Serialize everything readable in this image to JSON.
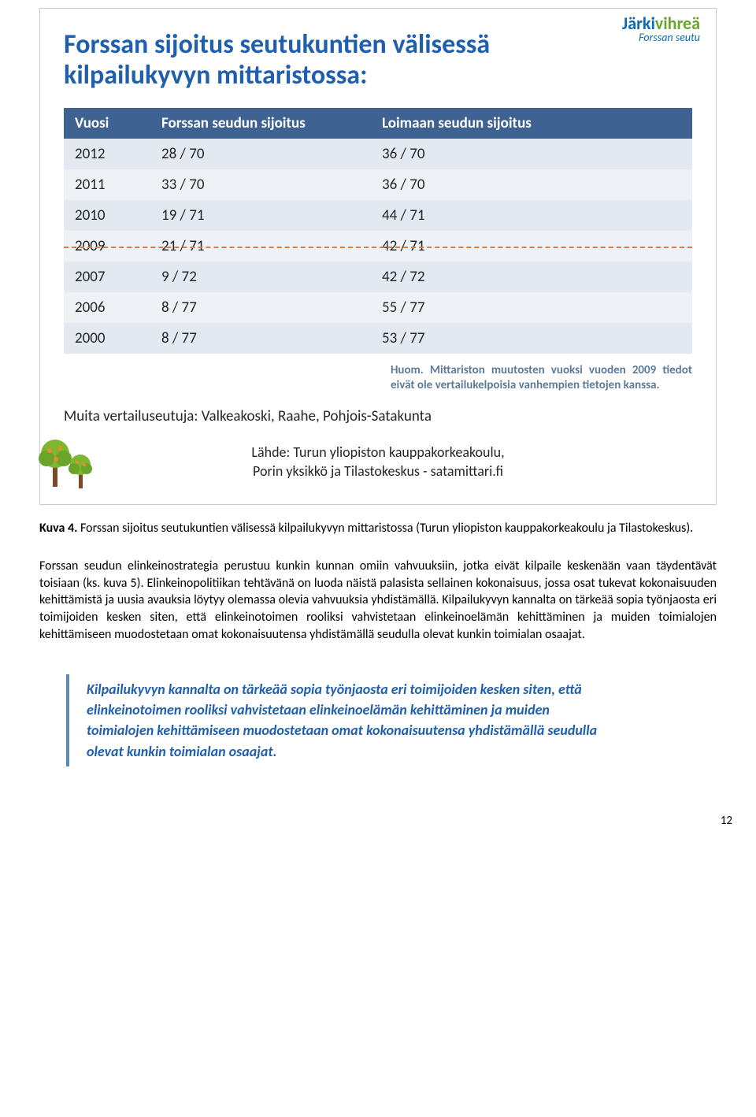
{
  "logo": {
    "part1": "Järki",
    "part2": "vihreä",
    "sub": "Forssan seutu"
  },
  "slide": {
    "title": "Forssan sijoitus seutukuntien välisessä kilpailukyvyn mittaristossa:",
    "table": {
      "columns": [
        "Vuosi",
        "Forssan seudun sijoitus",
        "Loimaan seudun sijoitus"
      ],
      "rows": [
        [
          "2012",
          "28 / 70",
          "36 / 70"
        ],
        [
          "2011",
          "33 / 70",
          "36 / 70"
        ],
        [
          "2010",
          "19 / 71",
          "44 / 71"
        ],
        [
          "2009",
          "21 / 71",
          "42 / 71"
        ],
        [
          "2007",
          "9 / 72",
          "42 / 72"
        ],
        [
          "2006",
          "8 / 77",
          "55 / 77"
        ],
        [
          "2000",
          "8 / 77",
          "53 / 77"
        ]
      ],
      "header_bg": "#3e6292",
      "row_odd_bg": "#e3e9f1",
      "row_even_bg": "#eef2f7",
      "dash_row_index": 3,
      "dash_color": "#e07b3c"
    },
    "note": "Huom. Mittariston muutosten vuoksi vuoden 2009 tiedot eivät ole vertailukelpoisia vanhempien tietojen kanssa.",
    "muita": "Muita vertailuseutuja: Valkeakoski, Raahe, Pohjois-Satakunta",
    "lahde_line1": "Lähde: Turun yliopiston kauppakorkeakoulu,",
    "lahde_line2": "Porin yksikkö ja Tilastokeskus - satamittari.fi"
  },
  "caption": {
    "lead": "Kuva 4.",
    "text": " Forssan sijoitus seutukuntien välisessä kilpailukyvyn mittaristossa (Turun yliopiston kauppakorkeakoulu ja Tilastokeskus)."
  },
  "paragraph": "Forssan seudun elinkeinostrategia perustuu kunkin kunnan omiin vahvuuksiin, jotka eivät kilpaile keskenään vaan täydentävät toisiaan (ks. kuva 5). Elinkeinopolitiikan tehtävänä on luoda näistä palasista sellainen kokonaisuus, jossa osat tukevat kokonaisuuden kehittämistä ja uusia avauksia löytyy olemassa olevia vahvuuksia yhdistämällä. Kilpailukyvyn kannalta on tärkeää sopia työnjaosta eri toimijoiden kesken siten, että elinkeinotoimen rooliksi vahvistetaan elinkeinoelämän kehittäminen ja muiden toimialojen kehittämiseen muodostetaan omat kokonaisuutensa yhdistämällä seudulla olevat kunkin toimialan osaajat.",
  "callout": "Kilpailukyvyn kannalta on tärkeää sopia työnjaosta eri toimijoiden kesken siten, että elinkeinotoimen rooliksi vahvistetaan elinkeinoelämän kehittäminen ja muiden toimialojen kehittämiseen muodostetaan omat kokonaisuutensa yhdistämällä seudulla olevat kunkin toimialan osaajat.",
  "page_number": "12"
}
